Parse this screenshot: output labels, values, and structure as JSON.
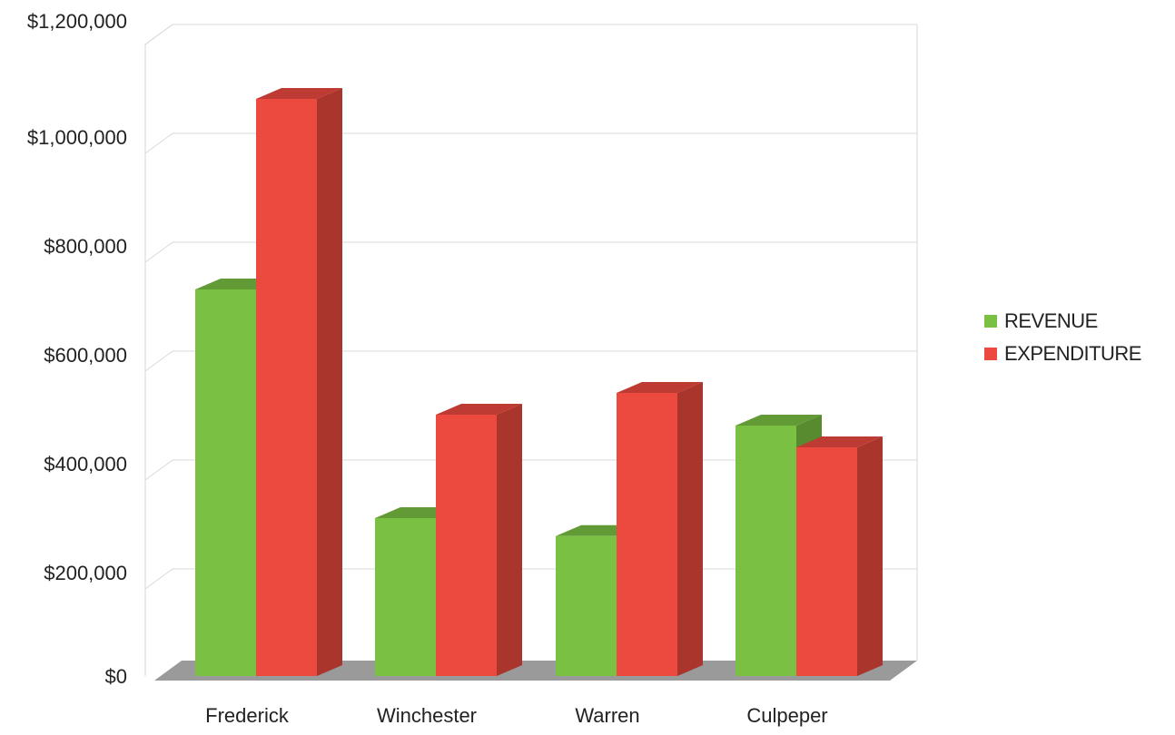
{
  "chart_data": {
    "type": "bar",
    "title": "",
    "xlabel": "",
    "ylabel": "",
    "categories": [
      "Frederick",
      "Winchester",
      "Warren",
      "Culpeper"
    ],
    "series": [
      {
        "name": "REVENUE",
        "color": "#7ac143",
        "values": [
          710000,
          290000,
          257000,
          460000
        ]
      },
      {
        "name": "EXPENDITURE",
        "color": "#ec4a3e",
        "values": [
          1060000,
          480000,
          520000,
          420000
        ]
      }
    ],
    "ylim": [
      0,
      1200000
    ],
    "yticks": [
      0,
      200000,
      400000,
      600000,
      800000,
      1000000,
      1200000
    ],
    "ytick_labels": [
      "$0",
      "$200,000",
      "$400,000",
      "$600,000",
      "$800,000",
      "$1,000,000",
      "$1,200,000"
    ],
    "grid": true,
    "legend_position": "right",
    "style": "3d-column"
  }
}
